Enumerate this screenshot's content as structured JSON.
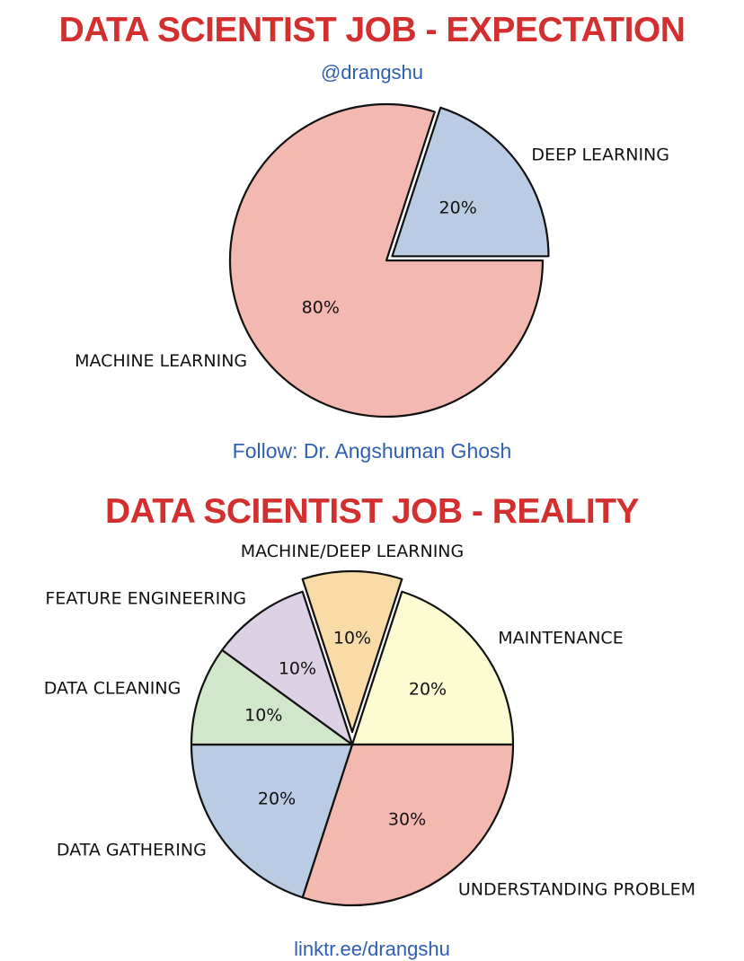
{
  "header": {
    "title": "DATA SCIENTIST JOB - EXPECTATION",
    "handle": "@drangshu"
  },
  "middle": {
    "follow": "Follow: Dr. Angshuman Ghosh",
    "title": "DATA SCIENTIST JOB - REALITY"
  },
  "footer": {
    "link_partial": "linktr.ee/drangshu"
  },
  "colors": {
    "title_red": "#d32f2f",
    "link_blue": "#2f5fb0"
  },
  "chart_data": [
    {
      "type": "pie",
      "title": "DATA SCIENTIST JOB - EXPECTATION",
      "slices": [
        {
          "label": "DEEP LEARNING",
          "value": 20,
          "pct_label": "20%",
          "color": "#b9cce4",
          "exploded": true
        },
        {
          "label": "MACHINE LEARNING",
          "value": 80,
          "pct_label": "80%",
          "color": "#f3b9b0",
          "exploded": false
        }
      ]
    },
    {
      "type": "pie",
      "title": "DATA SCIENTIST JOB - REALITY",
      "slices": [
        {
          "label": "MACHINE/DEEP LEARNING",
          "value": 10,
          "pct_label": "10%",
          "color": "#f9dba8",
          "exploded": true
        },
        {
          "label": "MAINTENANCE",
          "value": 20,
          "pct_label": "20%",
          "color": "#fdfbd2",
          "exploded": false
        },
        {
          "label": "UNDERSTANDING PROBLEM",
          "value": 30,
          "pct_label": "30%",
          "color": "#f3b9b0",
          "exploded": false
        },
        {
          "label": "DATA GATHERING",
          "value": 20,
          "pct_label": "20%",
          "color": "#b9cce4",
          "exploded": false
        },
        {
          "label": "DATA CLEANING",
          "value": 10,
          "pct_label": "10%",
          "color": "#d1e7ca",
          "exploded": false
        },
        {
          "label": "FEATURE ENGINEERING",
          "value": 10,
          "pct_label": "10%",
          "color": "#ddd1e6",
          "exploded": false
        }
      ]
    }
  ]
}
